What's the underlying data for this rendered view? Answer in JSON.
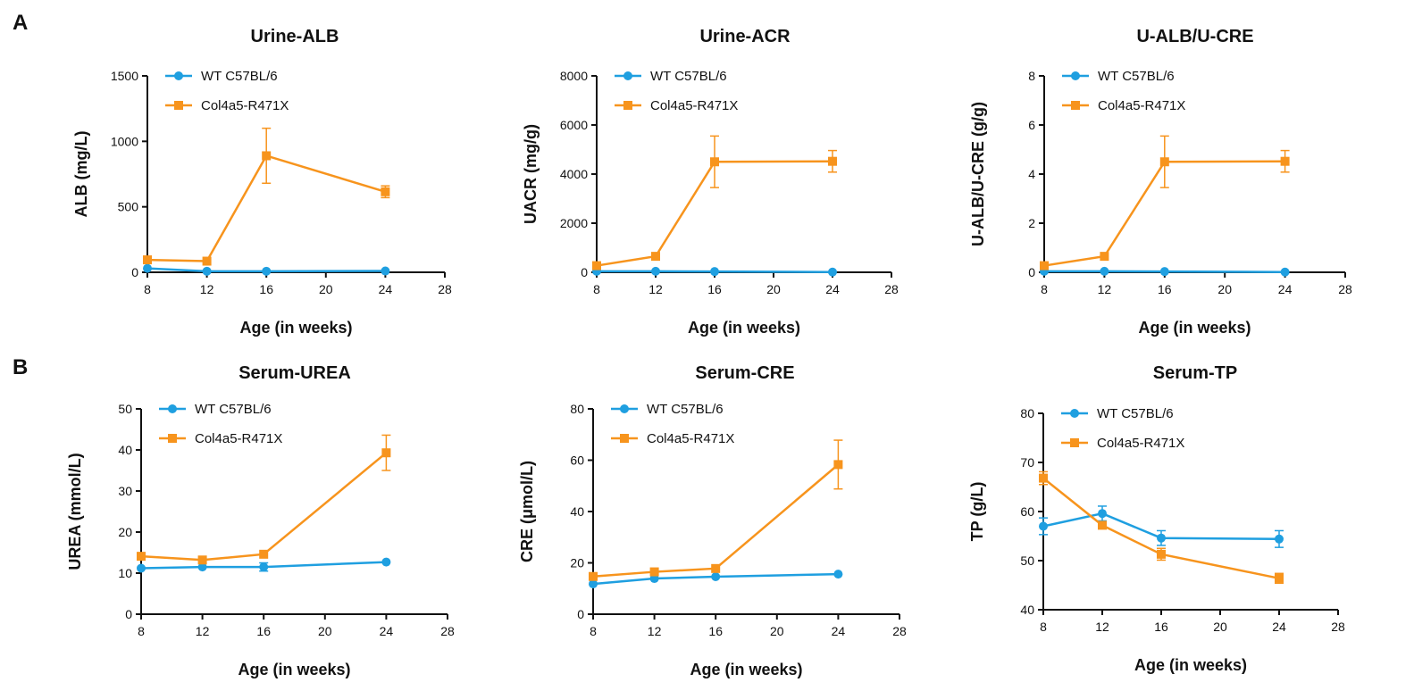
{
  "panels": {
    "a": "A",
    "b": "B"
  },
  "legend_labels": [
    "WT C57BL/6",
    "Col4a5-R471X"
  ],
  "colors": {
    "wt": "#1f9fe0",
    "mut": "#f7941d"
  },
  "chart_data": [
    {
      "type": "line",
      "title": "Urine-ALB",
      "xlabel": "Age (in weeks)",
      "ylabel": "ALB (mg/L)",
      "xlim": [
        8,
        28
      ],
      "xticks": [
        8,
        12,
        16,
        20,
        24,
        28
      ],
      "ylim": [
        0,
        1500
      ],
      "yticks": [
        0,
        500,
        1000,
        1500
      ],
      "x": [
        8,
        12,
        16,
        24
      ],
      "grid": false,
      "legend": "top-left",
      "series": [
        {
          "name": "WT C57BL/6",
          "marker": "circle",
          "values": [
            30,
            8,
            8,
            10
          ],
          "err": [
            0,
            0,
            0,
            0
          ]
        },
        {
          "name": "Col4a5-R471X",
          "marker": "square",
          "values": [
            95,
            85,
            890,
            615
          ],
          "err": [
            0,
            0,
            210,
            45
          ]
        }
      ]
    },
    {
      "type": "line",
      "title": "Urine-ACR",
      "xlabel": "Age (in weeks)",
      "ylabel": "UACR (mg/g)",
      "xlim": [
        8,
        28
      ],
      "xticks": [
        8,
        12,
        16,
        20,
        24,
        28
      ],
      "ylim": [
        0,
        8000
      ],
      "yticks": [
        0,
        2000,
        4000,
        6000,
        8000
      ],
      "x": [
        8,
        12,
        16,
        24
      ],
      "grid": false,
      "legend": "top-left",
      "series": [
        {
          "name": "WT C57BL/6",
          "marker": "circle",
          "values": [
            40,
            40,
            30,
            10
          ],
          "err": [
            0,
            0,
            0,
            0
          ]
        },
        {
          "name": "Col4a5-R471X",
          "marker": "square",
          "values": [
            270,
            650,
            4500,
            4520
          ],
          "err": [
            0,
            0,
            1050,
            440
          ]
        }
      ]
    },
    {
      "type": "line",
      "title": "U-ALB/U-CRE",
      "xlabel": "Age (in weeks)",
      "ylabel": "U-ALB/U-CRE (g/g)",
      "xlim": [
        8,
        28
      ],
      "xticks": [
        8,
        12,
        16,
        20,
        24,
        28
      ],
      "ylim": [
        0,
        8
      ],
      "yticks": [
        0,
        2,
        4,
        6,
        8
      ],
      "x": [
        8,
        12,
        16,
        24
      ],
      "grid": false,
      "legend": "top-left",
      "series": [
        {
          "name": "WT C57BL/6",
          "marker": "circle",
          "values": [
            0.04,
            0.04,
            0.03,
            0.01
          ],
          "err": [
            0,
            0,
            0,
            0
          ]
        },
        {
          "name": "Col4a5-R471X",
          "marker": "square",
          "values": [
            0.27,
            0.65,
            4.5,
            4.52
          ],
          "err": [
            0,
            0,
            1.05,
            0.44
          ]
        }
      ]
    },
    {
      "type": "line",
      "title": "Serum-UREA",
      "xlabel": "Age (in weeks)",
      "ylabel": "UREA (mmol/L)",
      "xlim": [
        8,
        28
      ],
      "xticks": [
        8,
        12,
        16,
        20,
        24,
        28
      ],
      "ylim": [
        0,
        50
      ],
      "yticks": [
        0,
        10,
        20,
        30,
        40,
        50
      ],
      "x": [
        8,
        12,
        16,
        24
      ],
      "grid": false,
      "legend": "top-left",
      "series": [
        {
          "name": "WT C57BL/6",
          "marker": "circle",
          "values": [
            11.2,
            11.5,
            11.5,
            12.7
          ],
          "err": [
            0,
            0,
            1.0,
            0
          ]
        },
        {
          "name": "Col4a5-R471X",
          "marker": "square",
          "values": [
            14.1,
            13.2,
            14.6,
            39.3
          ],
          "err": [
            0,
            0,
            0,
            4.3
          ]
        }
      ]
    },
    {
      "type": "line",
      "title": "Serum-CRE",
      "xlabel": "Age (in weeks)",
      "ylabel": "CRE (μmol/L)",
      "xlim": [
        8,
        28
      ],
      "xticks": [
        8,
        12,
        16,
        20,
        24,
        28
      ],
      "ylim": [
        0,
        80
      ],
      "yticks": [
        0,
        20,
        40,
        60,
        80
      ],
      "x": [
        8,
        12,
        16,
        24
      ],
      "grid": false,
      "legend": "top-left",
      "series": [
        {
          "name": "WT C57BL/6",
          "marker": "circle",
          "values": [
            11.8,
            13.9,
            14.6,
            15.6
          ],
          "err": [
            0,
            0,
            0,
            0
          ]
        },
        {
          "name": "Col4a5-R471X",
          "marker": "square",
          "values": [
            14.7,
            16.5,
            17.8,
            58.3
          ],
          "err": [
            0,
            0,
            0,
            9.5
          ]
        }
      ]
    },
    {
      "type": "line",
      "title": "Serum-TP",
      "xlabel": "Age (in weeks)",
      "ylabel": "TP (g/L)",
      "xlim": [
        8,
        28
      ],
      "xticks": [
        8,
        12,
        16,
        20,
        24,
        28
      ],
      "ylim": [
        40,
        80
      ],
      "yticks": [
        40,
        50,
        60,
        70,
        80
      ],
      "x": [
        8,
        12,
        16,
        24
      ],
      "grid": false,
      "legend": "top-left",
      "series": [
        {
          "name": "WT C57BL/6",
          "marker": "circle",
          "values": [
            57.0,
            59.6,
            54.6,
            54.4
          ],
          "err": [
            1.7,
            1.5,
            1.5,
            1.7
          ]
        },
        {
          "name": "Col4a5-R471X",
          "marker": "square",
          "values": [
            66.8,
            57.2,
            51.3,
            46.4
          ],
          "err": [
            1.3,
            0,
            1.2,
            1.0
          ]
        }
      ]
    }
  ]
}
